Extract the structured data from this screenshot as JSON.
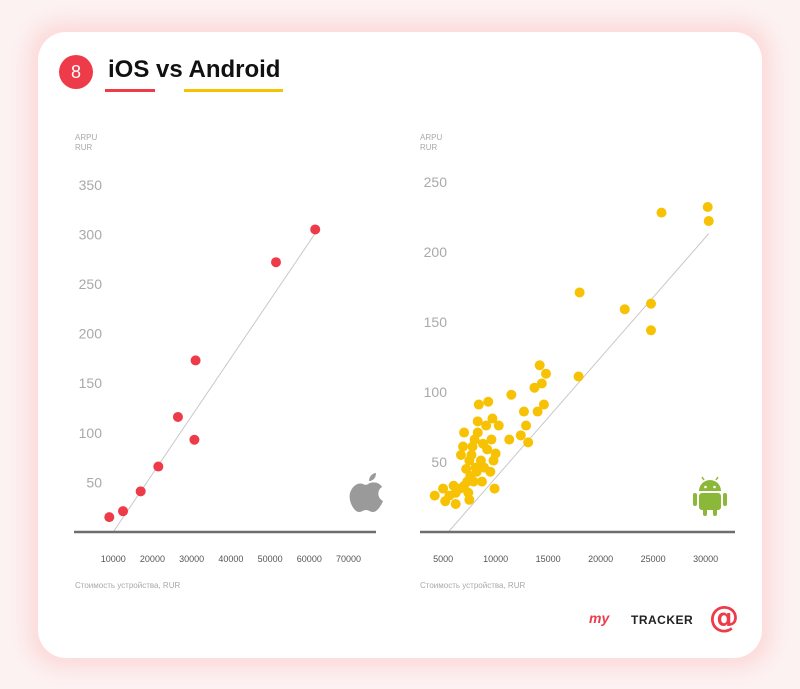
{
  "header": {
    "badge_number": "8",
    "title": "iOS vs Android"
  },
  "colors": {
    "ios": "#ee3b4a",
    "android": "#f7c204",
    "trend": "#c8c8c8",
    "axis": "#6e6e6e"
  },
  "chart_data": [
    {
      "type": "scatter",
      "name": "ios",
      "ylabel": "ARPU\nRUR",
      "xlabel": "Стоимость устройства, RUR",
      "x_ticks": [
        10000,
        20000,
        30000,
        40000,
        50000,
        60000,
        70000
      ],
      "y_ticks": [
        50,
        100,
        150,
        200,
        250,
        300,
        350
      ],
      "xlim": [
        0,
        77000
      ],
      "ylim": [
        0,
        370
      ],
      "grid": false,
      "icon": "apple-icon",
      "trendline": [
        [
          10000,
          0
        ],
        [
          62000,
          304
        ]
      ],
      "points": [
        [
          9000,
          15
        ],
        [
          12500,
          21
        ],
        [
          17000,
          41
        ],
        [
          21500,
          66
        ],
        [
          26500,
          116
        ],
        [
          30700,
          93
        ],
        [
          31000,
          173
        ],
        [
          51500,
          272
        ],
        [
          61500,
          305
        ]
      ]
    },
    {
      "type": "scatter",
      "name": "android",
      "ylabel": "ARPU\nRUR",
      "xlabel": "Стоимость устройства, RUR",
      "x_ticks": [
        5000,
        10000,
        15000,
        20000,
        25000,
        30000
      ],
      "y_ticks": [
        50,
        100,
        150,
        200,
        250
      ],
      "xlim": [
        2800,
        32800
      ],
      "ylim": [
        0,
        262
      ],
      "grid": false,
      "icon": "android-icon",
      "trendline": [
        [
          5500,
          0
        ],
        [
          30300,
          213
        ]
      ],
      "points": [
        [
          4200,
          26
        ],
        [
          5000,
          31
        ],
        [
          5200,
          22
        ],
        [
          5600,
          26
        ],
        [
          6000,
          33
        ],
        [
          6200,
          28
        ],
        [
          6200,
          20
        ],
        [
          6600,
          31
        ],
        [
          6700,
          55
        ],
        [
          6900,
          61
        ],
        [
          7000,
          71
        ],
        [
          7000,
          33
        ],
        [
          7200,
          45
        ],
        [
          7300,
          36
        ],
        [
          7400,
          28
        ],
        [
          7500,
          51
        ],
        [
          7500,
          23
        ],
        [
          7600,
          40
        ],
        [
          7700,
          55
        ],
        [
          7800,
          61
        ],
        [
          7900,
          36
        ],
        [
          8000,
          66
        ],
        [
          8100,
          46
        ],
        [
          8200,
          43
        ],
        [
          8300,
          71
        ],
        [
          8300,
          79
        ],
        [
          8400,
          91
        ],
        [
          8600,
          51
        ],
        [
          8700,
          36
        ],
        [
          8800,
          63
        ],
        [
          8900,
          46
        ],
        [
          9100,
          76
        ],
        [
          9200,
          59
        ],
        [
          9300,
          93
        ],
        [
          9500,
          43
        ],
        [
          9600,
          66
        ],
        [
          9700,
          81
        ],
        [
          9800,
          51
        ],
        [
          9900,
          31
        ],
        [
          10000,
          56
        ],
        [
          10300,
          76
        ],
        [
          11300,
          66
        ],
        [
          11500,
          98
        ],
        [
          12400,
          69
        ],
        [
          12700,
          86
        ],
        [
          12900,
          76
        ],
        [
          13100,
          64
        ],
        [
          13700,
          103
        ],
        [
          14000,
          86
        ],
        [
          14200,
          119
        ],
        [
          14400,
          106
        ],
        [
          14600,
          91
        ],
        [
          14800,
          113
        ],
        [
          17900,
          111
        ],
        [
          18000,
          171
        ],
        [
          22300,
          159
        ],
        [
          24800,
          163
        ],
        [
          24800,
          144
        ],
        [
          25800,
          228
        ],
        [
          30200,
          232
        ],
        [
          30300,
          222
        ]
      ]
    }
  ],
  "brand": {
    "my": "my",
    "tracker": "TRACKER",
    "at": "@"
  }
}
